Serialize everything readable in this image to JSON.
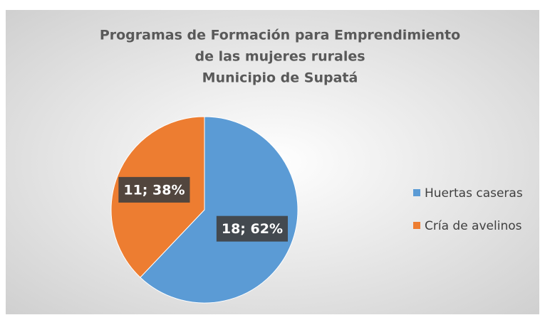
{
  "chart_data": {
    "type": "pie",
    "title": [
      "Programas de Formación para Emprendimiento",
      "de las mujeres rurales",
      "Municipio de Supatá"
    ],
    "categories": [
      "Huertas caseras",
      "Cría de avelinos"
    ],
    "values": [
      18,
      11
    ],
    "value_labels": [
      "18; 62%",
      "11; 38%"
    ],
    "colors": [
      "#5b9bd5",
      "#ed7d31"
    ],
    "legend": "right"
  }
}
